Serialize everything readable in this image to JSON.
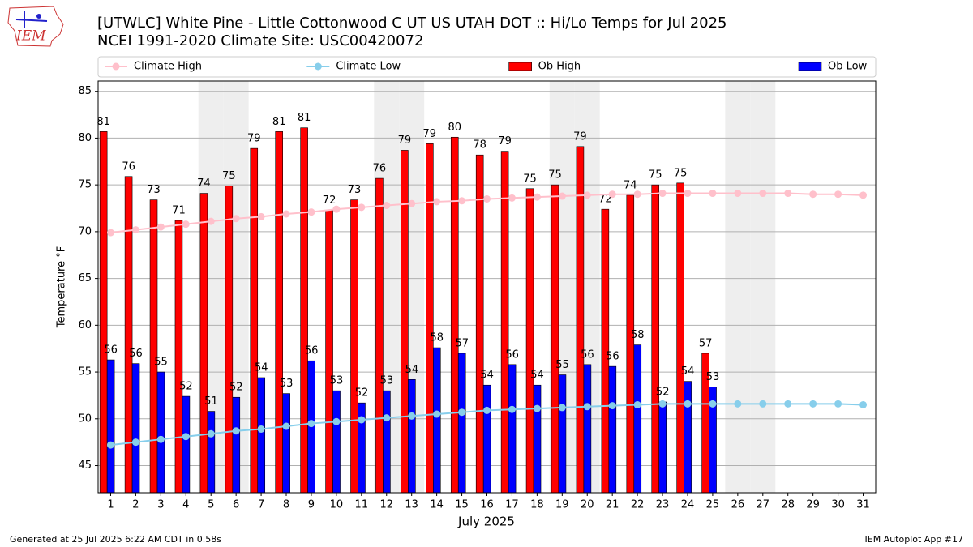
{
  "logo_text": "IEM",
  "footer_left": "Generated at 25 Jul 2025 6:22 AM CDT in 0.58s",
  "footer_right": "IEM Autoplot App #17",
  "chart_data": {
    "type": "bar",
    "title": "[UTWLC] White Pine - Little Cottonwood C UT US UTAH DOT :: Hi/Lo Temps for Jul 2025",
    "subtitle": "NCEI 1991-2020 Climate Site: USC00420072",
    "x_label": "July 2025",
    "y_label": "Temperature °F",
    "categories": [
      "1",
      "2",
      "3",
      "4",
      "5",
      "6",
      "7",
      "8",
      "9",
      "10",
      "11",
      "12",
      "13",
      "14",
      "15",
      "16",
      "17",
      "18",
      "19",
      "20",
      "21",
      "22",
      "23",
      "24",
      "25",
      "26",
      "27",
      "28",
      "29",
      "30",
      "31"
    ],
    "shaded": [
      "5",
      "6",
      "12",
      "13",
      "19",
      "20",
      "26",
      "27"
    ],
    "shade_color": "#eeeeee",
    "ylim": [
      42.1,
      86.1
    ],
    "yticks": [
      45,
      50,
      55,
      60,
      65,
      70,
      75,
      80,
      85
    ],
    "grid": true,
    "legend": "top",
    "series": [
      {
        "name": "Climate High",
        "type": "line",
        "color": "#ffc0cb",
        "values": [
          69.9,
          70.2,
          70.5,
          70.8,
          71.1,
          71.4,
          71.6,
          71.9,
          72.1,
          72.4,
          72.6,
          72.8,
          73.0,
          73.2,
          73.3,
          73.5,
          73.6,
          73.7,
          73.8,
          73.9,
          74.0,
          74.0,
          74.1,
          74.1,
          74.1,
          74.1,
          74.1,
          74.1,
          74.0,
          74.0,
          73.9
        ]
      },
      {
        "name": "Climate Low",
        "type": "line",
        "color": "#87ceeb",
        "values": [
          47.2,
          47.5,
          47.8,
          48.1,
          48.4,
          48.7,
          48.9,
          49.2,
          49.5,
          49.7,
          49.9,
          50.1,
          50.3,
          50.5,
          50.7,
          50.9,
          51.0,
          51.1,
          51.2,
          51.3,
          51.4,
          51.5,
          51.6,
          51.6,
          51.6,
          51.6,
          51.6,
          51.6,
          51.6,
          51.6,
          51.5
        ]
      },
      {
        "name": "Ob High",
        "type": "bar",
        "color": "#ff0000",
        "values": [
          80.7,
          75.9,
          73.4,
          71.2,
          74.1,
          74.9,
          78.9,
          80.7,
          81.1,
          72.3,
          73.4,
          75.7,
          78.7,
          79.4,
          80.1,
          78.2,
          78.6,
          74.6,
          75.0,
          79.1,
          72.4,
          73.9,
          75.0,
          75.2,
          57.0,
          null,
          null,
          null,
          null,
          null,
          null
        ],
        "value_labels": [
          "81",
          "76",
          "73",
          "71",
          "74",
          "75",
          "79",
          "81",
          "81",
          "72",
          "73",
          "76",
          "79",
          "79",
          "80",
          "78",
          "79",
          "75",
          "75",
          "79",
          "72",
          "74",
          "75",
          "75",
          "57",
          null,
          null,
          null,
          null,
          null,
          null
        ]
      },
      {
        "name": "Ob Low",
        "type": "bar",
        "color": "#0000ff",
        "values": [
          56.3,
          55.9,
          55.0,
          52.4,
          50.8,
          52.3,
          54.4,
          52.7,
          56.2,
          53.0,
          51.7,
          53.0,
          54.2,
          57.6,
          57.0,
          53.6,
          55.8,
          53.6,
          54.7,
          55.8,
          55.6,
          57.9,
          51.8,
          54.0,
          53.4,
          null,
          null,
          null,
          null,
          null,
          null
        ],
        "value_labels": [
          "56",
          "56",
          "55",
          "52",
          "51",
          "52",
          "54",
          "53",
          "56",
          "53",
          "52",
          "53",
          "54",
          "58",
          "57",
          "54",
          "56",
          "54",
          "55",
          "56",
          "56",
          "58",
          "52",
          "54",
          "53",
          null,
          null,
          null,
          null,
          null,
          null
        ]
      }
    ]
  }
}
